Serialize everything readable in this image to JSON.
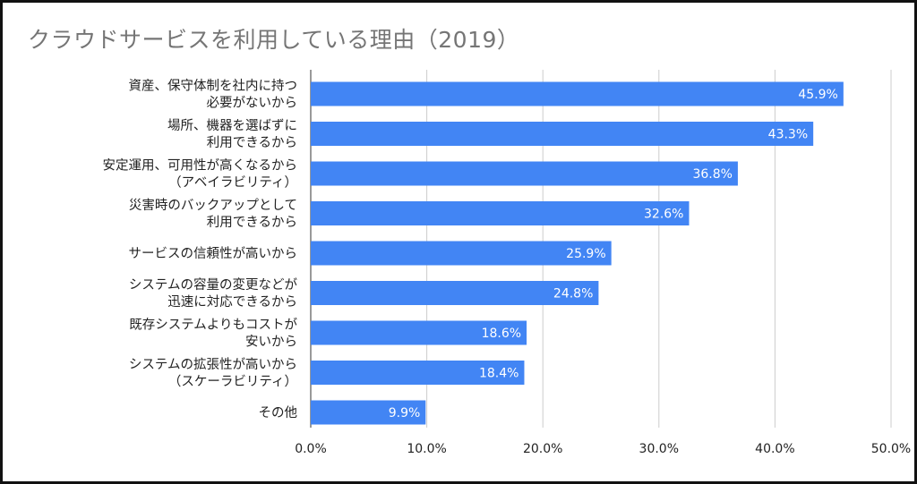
{
  "chart_data": {
    "type": "bar",
    "orientation": "horizontal",
    "title": "クラウドサービスを利用している理由（2019）",
    "categories": [
      [
        "資産、保守体制を社内に持つ",
        "必要がないから"
      ],
      [
        "場所、機器を選ばずに",
        "利用できるから"
      ],
      [
        "安定運用、可用性が高くなるから",
        "（アベイラビリティ）"
      ],
      [
        "災害時のバックアップとして",
        "利用できるから"
      ],
      [
        "サービスの信頼性が高いから"
      ],
      [
        "システムの容量の変更などが",
        "迅速に対応できるから"
      ],
      [
        "既存システムよりもコストが",
        "安いから"
      ],
      [
        "システムの拡張性が高いから",
        "（スケーラビリティ）"
      ],
      [
        "その他"
      ]
    ],
    "values": [
      45.9,
      43.3,
      36.8,
      32.6,
      25.9,
      24.8,
      18.6,
      18.4,
      9.9
    ],
    "value_labels": [
      "45.9%",
      "43.3%",
      "36.8%",
      "32.6%",
      "25.9%",
      "24.8%",
      "18.6%",
      "18.4%",
      "9.9%"
    ],
    "xlim": [
      0,
      50
    ],
    "x_ticks": [
      "0.0%",
      "10.0%",
      "20.0%",
      "30.0%",
      "40.0%",
      "50.0%"
    ],
    "grid": true,
    "legend": "none",
    "colors": {
      "bar": "#4285f4",
      "grid": "#cccccc",
      "title": "#757575",
      "text": "#222222",
      "value_label": "#ffffff"
    }
  }
}
